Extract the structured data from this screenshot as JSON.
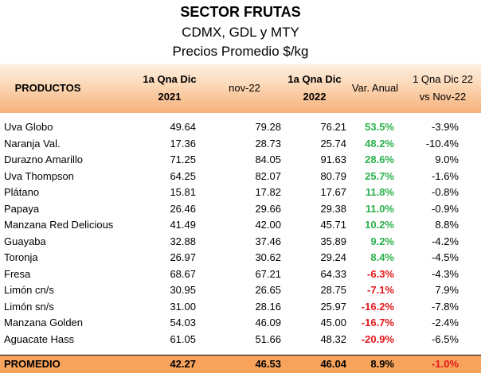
{
  "title": "SECTOR FRUTAS",
  "subtitle": "CDMX, GDL y MTY",
  "subtitle2": "Precios Promedio $/kg",
  "headers": {
    "productos": "PRODUCTOS",
    "col1_l1": "1a Qna Dic",
    "col1_l2": "2021",
    "col2": "nov-22",
    "col3_l1": "1a Qna Dic",
    "col3_l2": "2022",
    "col4": "Var. Anual",
    "col5_l1": "1 Qna Dic 22",
    "col5_l2": "vs Nov-22"
  },
  "rows": [
    {
      "producto": "Uva Globo",
      "dic2021": "49.64",
      "nov22": "79.28",
      "dic2022": "76.21",
      "var_anual": "53.5%",
      "var_qna": "-3.9%"
    },
    {
      "producto": "Naranja Val.",
      "dic2021": "17.36",
      "nov22": "28.73",
      "dic2022": "25.74",
      "var_anual": "48.2%",
      "var_qna": "-10.4%"
    },
    {
      "producto": "Durazno Amarillo",
      "dic2021": "71.25",
      "nov22": "84.05",
      "dic2022": "91.63",
      "var_anual": "28.6%",
      "var_qna": "9.0%"
    },
    {
      "producto": "Uva Thompson",
      "dic2021": "64.25",
      "nov22": "82.07",
      "dic2022": "80.79",
      "var_anual": "25.7%",
      "var_qna": "-1.6%"
    },
    {
      "producto": "Plátano",
      "dic2021": "15.81",
      "nov22": "17.82",
      "dic2022": "17.67",
      "var_anual": "11.8%",
      "var_qna": "-0.8%"
    },
    {
      "producto": "Papaya",
      "dic2021": "26.46",
      "nov22": "29.66",
      "dic2022": "29.38",
      "var_anual": "11.0%",
      "var_qna": "-0.9%"
    },
    {
      "producto": "Manzana Red Delicious",
      "dic2021": "41.49",
      "nov22": "42.00",
      "dic2022": "45.71",
      "var_anual": "10.2%",
      "var_qna": "8.8%"
    },
    {
      "producto": "Guayaba",
      "dic2021": "32.88",
      "nov22": "37.46",
      "dic2022": "35.89",
      "var_anual": "9.2%",
      "var_qna": "-4.2%"
    },
    {
      "producto": "Toronja",
      "dic2021": "26.97",
      "nov22": "30.62",
      "dic2022": "29.24",
      "var_anual": "8.4%",
      "var_qna": "-4.5%"
    },
    {
      "producto": "Fresa",
      "dic2021": "68.67",
      "nov22": "67.21",
      "dic2022": "64.33",
      "var_anual": "-6.3%",
      "var_qna": "-4.3%"
    },
    {
      "producto": "Limón cn/s",
      "dic2021": "30.95",
      "nov22": "26.65",
      "dic2022": "28.75",
      "var_anual": "-7.1%",
      "var_qna": "7.9%"
    },
    {
      "producto": "Limón sn/s",
      "dic2021": "31.00",
      "nov22": "28.16",
      "dic2022": "25.97",
      "var_anual": "-16.2%",
      "var_qna": "-7.8%"
    },
    {
      "producto": "Manzana Golden",
      "dic2021": "54.03",
      "nov22": "46.09",
      "dic2022": "45.00",
      "var_anual": "-16.7%",
      "var_qna": "-2.4%"
    },
    {
      "producto": "Aguacate Hass",
      "dic2021": "61.05",
      "nov22": "51.66",
      "dic2022": "48.32",
      "var_anual": "-20.9%",
      "var_qna": "-6.5%"
    }
  ],
  "promedio": {
    "producto": "PROMEDIO",
    "dic2021": "42.27",
    "nov22": "46.53",
    "dic2022": "46.04",
    "var_anual": "8.9%",
    "var_qna": "-1.0%"
  },
  "colors": {
    "positive": "#2bb14c",
    "negative": "#e3191b",
    "header_band": "#f7b078",
    "average_band": "#f7a35c"
  }
}
